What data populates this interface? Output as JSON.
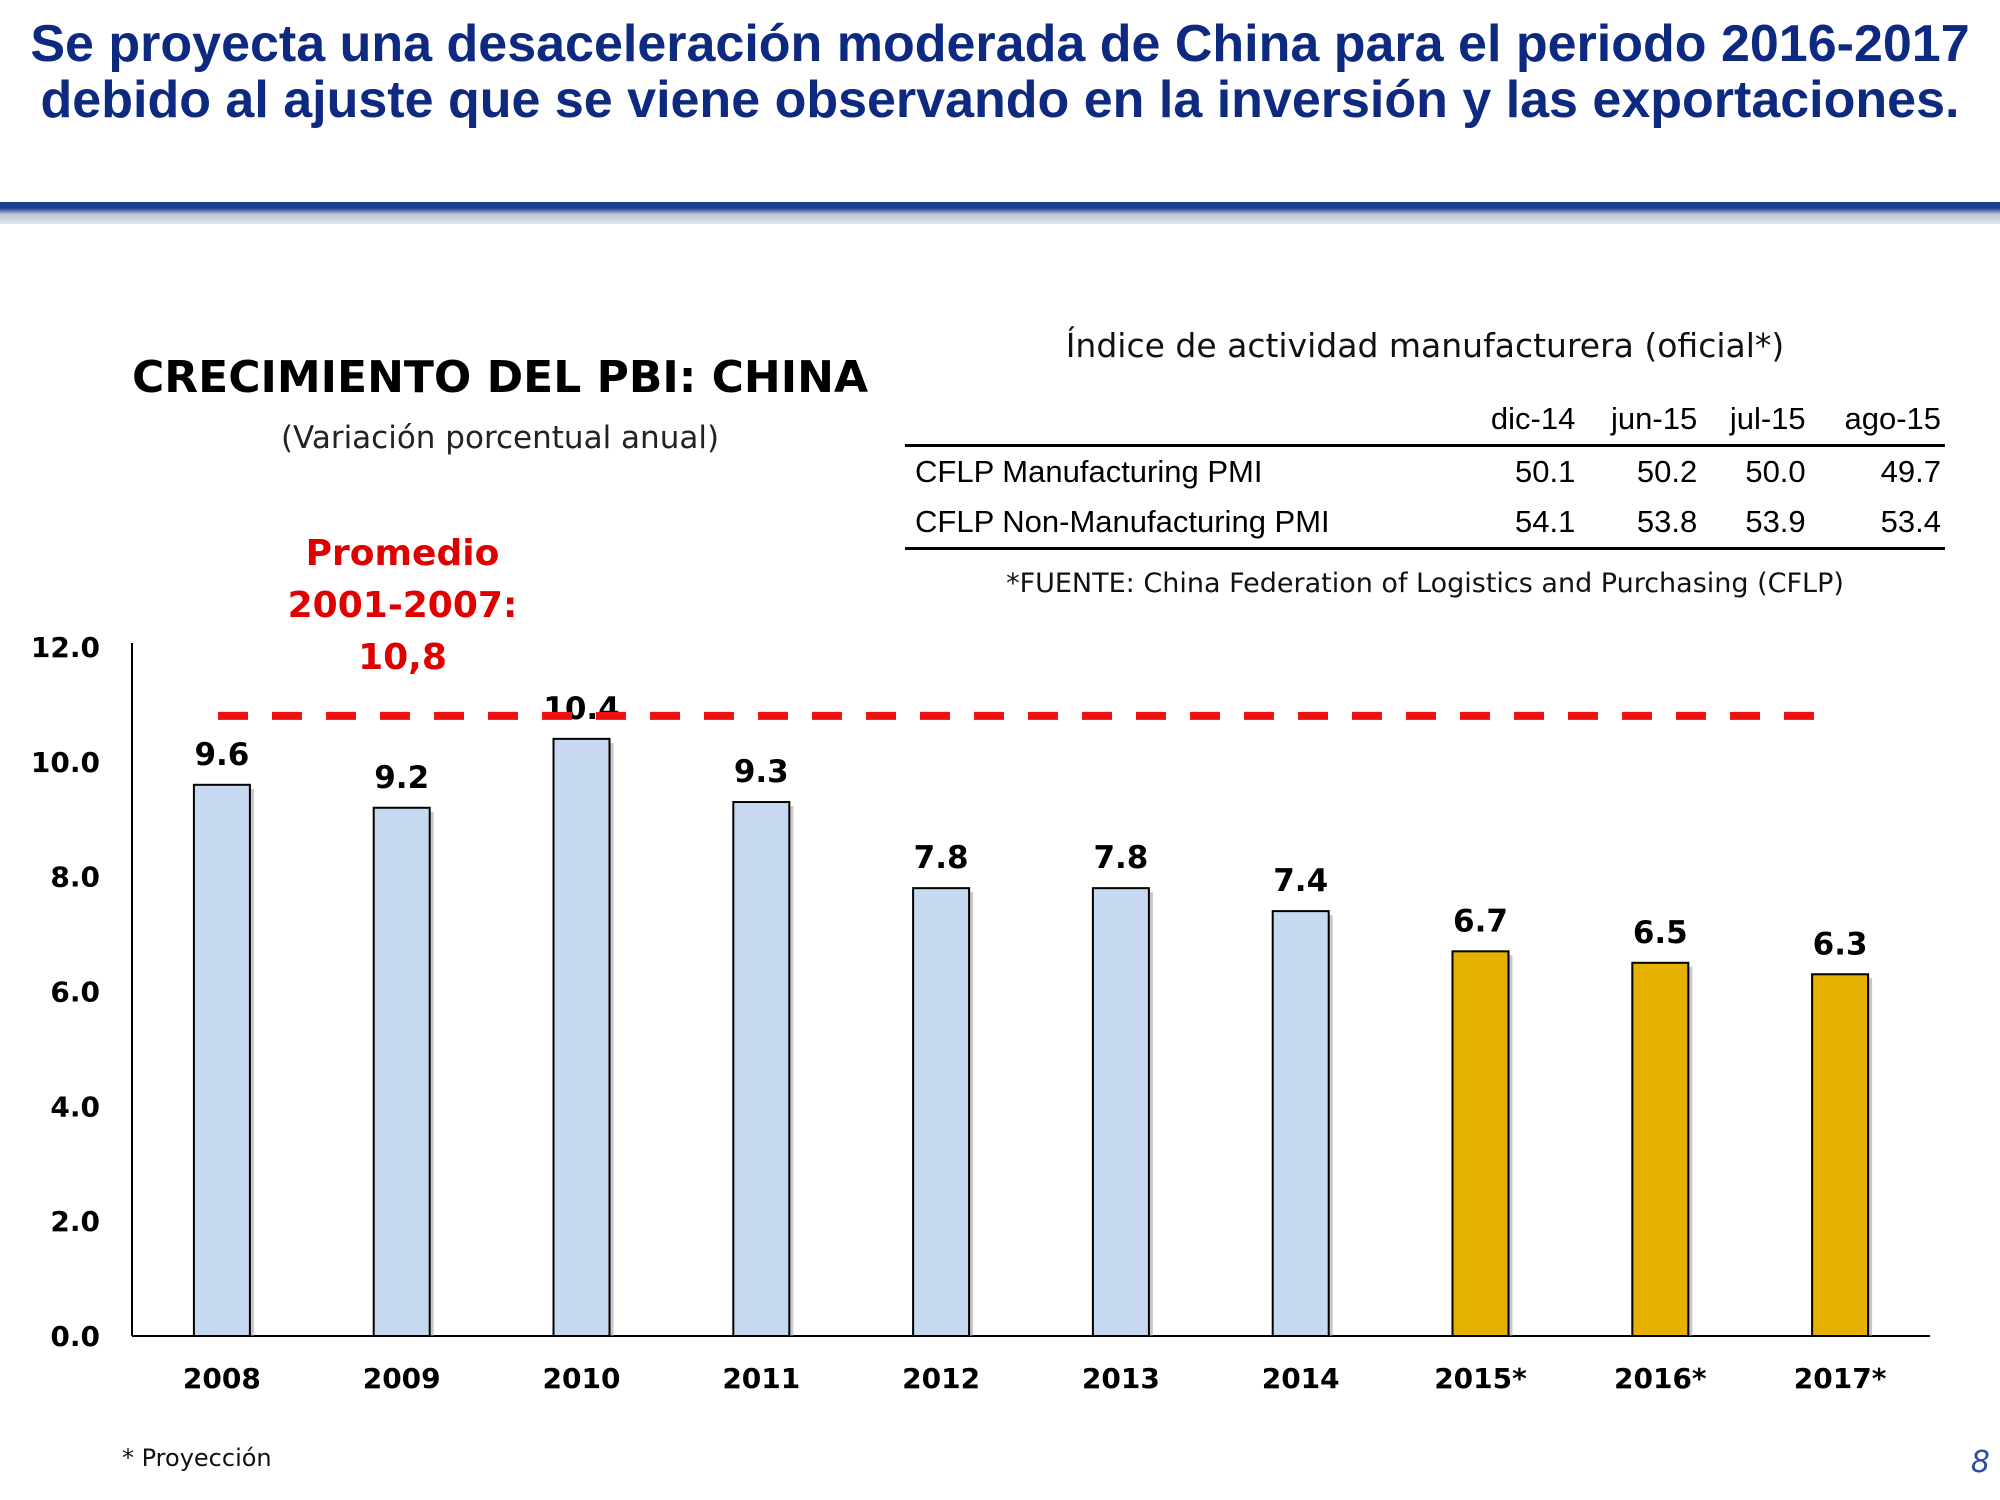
{
  "slide": {
    "title": "Se proyecta una desaceleración moderada de China para el periodo 2016-2017 debido al ajuste que se viene observando en la inversión y las exportaciones.",
    "footnote": "* Proyección",
    "page_number": "8"
  },
  "annotation": {
    "lines": [
      "Promedio",
      "2001-2007:",
      "10,8"
    ]
  },
  "pmi_table": {
    "title": "Índice de actividad manufacturera (oficial*)",
    "columns": [
      "dic-14",
      "jun-15",
      "jul-15",
      "ago-15"
    ],
    "rows": [
      {
        "label": "CFLP Manufacturing PMI",
        "values": [
          "50.1",
          "50.2",
          "50.0",
          "49.7"
        ]
      },
      {
        "label": "CFLP Non-Manufacturing PMI",
        "values": [
          "54.1",
          "53.8",
          "53.9",
          "53.4"
        ]
      }
    ],
    "source": "*FUENTE: China Federation of Logistics and Purchasing (CFLP)"
  },
  "chart_data": {
    "type": "bar",
    "title": "CRECIMIENTO DEL PBI: CHINA",
    "subtitle": "(Variación porcentual anual)",
    "xlabel": "",
    "ylabel": "",
    "categories": [
      "2008",
      "2009",
      "2010",
      "2011",
      "2012",
      "2013",
      "2014",
      "2015*",
      "2016*",
      "2017*"
    ],
    "values": [
      9.6,
      9.2,
      10.4,
      9.3,
      7.8,
      7.8,
      7.4,
      6.7,
      6.5,
      6.3
    ],
    "value_labels": [
      "9.6",
      "9.2",
      "10.4",
      "9.3",
      "7.8",
      "7.8",
      "7.4",
      "6.7",
      "6.5",
      "6.3"
    ],
    "projected": [
      false,
      false,
      false,
      false,
      false,
      false,
      false,
      true,
      true,
      true
    ],
    "yticks": [
      "0.0",
      "2.0",
      "4.0",
      "6.0",
      "8.0",
      "10.0",
      "12.0"
    ],
    "ylim": [
      0,
      12
    ],
    "reference_line": {
      "value": 10.8,
      "style": "dashed"
    },
    "colors": {
      "actual": "#c6d9f1",
      "projected": "#e6b000",
      "bar_outline": "#000000",
      "reference": "#ee1111"
    },
    "grid": false,
    "legend": "none"
  }
}
